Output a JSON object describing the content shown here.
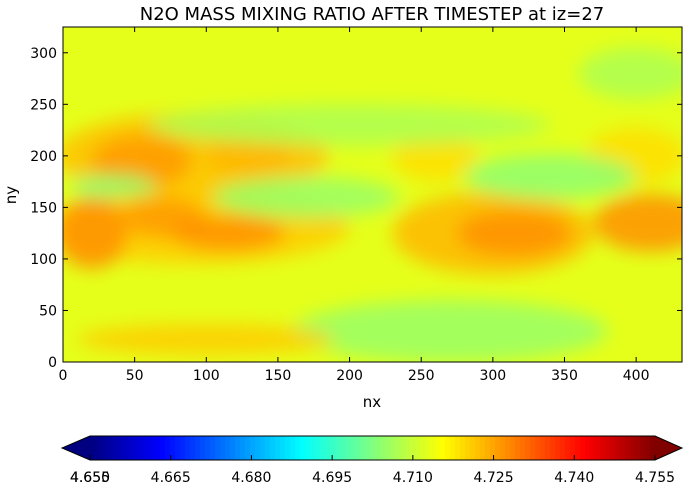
{
  "chart_data": {
    "type": "heatmap",
    "title": "N2O MASS MIXING RATIO AFTER TIMESTEP at iz=27",
    "xlabel": "nx",
    "ylabel": "ny",
    "xlim": [
      0,
      432
    ],
    "ylim": [
      0,
      325
    ],
    "x_ticks": [
      0,
      50,
      100,
      150,
      200,
      250,
      300,
      350,
      400
    ],
    "y_ticks": [
      0,
      50,
      100,
      150,
      200,
      250,
      300
    ],
    "grid": false,
    "colormap": "jet",
    "background_value": 4.713,
    "colorbar": {
      "orientation": "horizontal",
      "position": "bottom",
      "extend": "both",
      "min": 4.65,
      "max": 4.755,
      "tick_labels": [
        "4.650",
        "4.665",
        "4.680",
        "4.695",
        "4.710",
        "4.725",
        "4.740",
        "4.755"
      ],
      "overlap_label": "4.655"
    },
    "features": [
      {
        "x": 90,
        "y": 200,
        "rx": 95,
        "ry": 42,
        "value": 4.722
      },
      {
        "x": 55,
        "y": 195,
        "rx": 35,
        "ry": 25,
        "value": 4.726
      },
      {
        "x": 130,
        "y": 200,
        "rx": 30,
        "ry": 18,
        "value": 4.723
      },
      {
        "x": 35,
        "y": 170,
        "rx": 30,
        "ry": 12,
        "value": 4.704
      },
      {
        "x": 90,
        "y": 130,
        "rx": 110,
        "ry": 35,
        "value": 4.721
      },
      {
        "x": 20,
        "y": 125,
        "rx": 25,
        "ry": 35,
        "value": 4.727
      },
      {
        "x": 70,
        "y": 140,
        "rx": 30,
        "ry": 20,
        "value": 4.726
      },
      {
        "x": 115,
        "y": 125,
        "rx": 40,
        "ry": 17,
        "value": 4.727
      },
      {
        "x": 300,
        "y": 125,
        "rx": 70,
        "ry": 40,
        "value": 4.723
      },
      {
        "x": 315,
        "y": 125,
        "rx": 40,
        "ry": 22,
        "value": 4.727
      },
      {
        "x": 410,
        "y": 135,
        "rx": 40,
        "ry": 28,
        "value": 4.727
      },
      {
        "x": 400,
        "y": 200,
        "rx": 35,
        "ry": 28,
        "value": 4.719
      },
      {
        "x": 260,
        "y": 200,
        "rx": 30,
        "ry": 25,
        "value": 4.719
      },
      {
        "x": 170,
        "y": 160,
        "rx": 65,
        "ry": 20,
        "value": 4.705
      },
      {
        "x": 340,
        "y": 180,
        "rx": 60,
        "ry": 22,
        "value": 4.704
      },
      {
        "x": 200,
        "y": 230,
        "rx": 140,
        "ry": 20,
        "value": 4.707
      },
      {
        "x": 270,
        "y": 30,
        "rx": 110,
        "ry": 30,
        "value": 4.705
      },
      {
        "x": 100,
        "y": 22,
        "rx": 90,
        "ry": 15,
        "value": 4.721
      },
      {
        "x": 400,
        "y": 280,
        "rx": 40,
        "ry": 25,
        "value": 4.707
      }
    ]
  }
}
